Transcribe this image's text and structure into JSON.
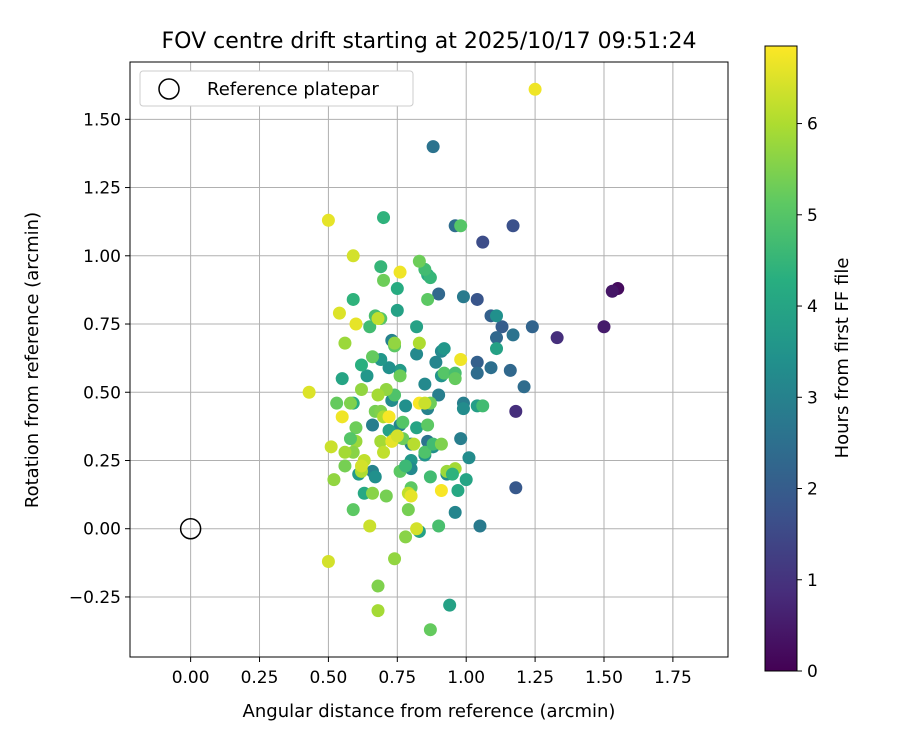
{
  "chart_data": {
    "type": "scatter",
    "title": "FOV centre drift starting at 2025/10/17 09:51:24",
    "xlabel": "Angular distance from reference (arcmin)",
    "ylabel": "Rotation from reference (arcmin)",
    "xlim": [
      -0.22,
      1.95
    ],
    "ylim": [
      -0.47,
      1.71
    ],
    "xticks": [
      0.0,
      0.25,
      0.5,
      0.75,
      1.0,
      1.25,
      1.5,
      1.75
    ],
    "xtick_labels": [
      "0.00",
      "0.25",
      "0.50",
      "0.75",
      "1.00",
      "1.25",
      "1.50",
      "1.75"
    ],
    "yticks": [
      -0.25,
      0.0,
      0.25,
      0.5,
      0.75,
      1.0,
      1.25,
      1.5
    ],
    "ytick_labels": [
      "−0.25",
      "0.00",
      "0.25",
      "0.50",
      "0.75",
      "1.00",
      "1.25",
      "1.50"
    ],
    "grid": true,
    "legend": {
      "position": "top-left",
      "entries": [
        "Reference platepar"
      ]
    },
    "reference_point": {
      "x": 0.0,
      "y": 0.0,
      "label": "Reference platepar"
    },
    "colorbar": {
      "label": "Hours from first FF file",
      "colormap": "viridis",
      "min": 0,
      "max": 6.85,
      "ticks": [
        0,
        1,
        2,
        3,
        4,
        5,
        6
      ],
      "tick_labels": [
        "0",
        "1",
        "2",
        "3",
        "4",
        "5",
        "6"
      ]
    },
    "points": [
      {
        "x": 1.55,
        "y": 0.88,
        "c": 0.2
      },
      {
        "x": 1.53,
        "y": 0.87,
        "c": 0.4
      },
      {
        "x": 1.5,
        "y": 0.74,
        "c": 0.5
      },
      {
        "x": 1.33,
        "y": 0.7,
        "c": 0.9
      },
      {
        "x": 1.18,
        "y": 0.43,
        "c": 0.9
      },
      {
        "x": 1.18,
        "y": 0.15,
        "c": 1.9
      },
      {
        "x": 1.24,
        "y": 0.74,
        "c": 2.2
      },
      {
        "x": 1.21,
        "y": 0.52,
        "c": 2.4
      },
      {
        "x": 1.17,
        "y": 1.11,
        "c": 1.7
      },
      {
        "x": 1.06,
        "y": 1.05,
        "c": 1.6
      },
      {
        "x": 1.04,
        "y": 0.84,
        "c": 1.8
      },
      {
        "x": 1.09,
        "y": 0.78,
        "c": 2.1
      },
      {
        "x": 1.13,
        "y": 0.74,
        "c": 2.0
      },
      {
        "x": 1.11,
        "y": 0.7,
        "c": 2.3
      },
      {
        "x": 1.17,
        "y": 0.71,
        "c": 2.6
      },
      {
        "x": 1.16,
        "y": 0.58,
        "c": 2.3
      },
      {
        "x": 1.09,
        "y": 0.59,
        "c": 2.5
      },
      {
        "x": 1.04,
        "y": 0.61,
        "c": 2.1
      },
      {
        "x": 1.04,
        "y": 0.57,
        "c": 2.4
      },
      {
        "x": 0.96,
        "y": 1.11,
        "c": 2.4
      },
      {
        "x": 0.88,
        "y": 1.4,
        "c": 2.6
      },
      {
        "x": 0.9,
        "y": 0.86,
        "c": 2.3
      },
      {
        "x": 0.99,
        "y": 0.85,
        "c": 2.8
      },
      {
        "x": 1.11,
        "y": 0.78,
        "c": 3.4
      },
      {
        "x": 1.11,
        "y": 0.66,
        "c": 3.9
      },
      {
        "x": 0.99,
        "y": 0.46,
        "c": 2.9
      },
      {
        "x": 0.99,
        "y": 0.44,
        "c": 3.3
      },
      {
        "x": 1.04,
        "y": 0.45,
        "c": 3.8
      },
      {
        "x": 1.01,
        "y": 0.26,
        "c": 3.3
      },
      {
        "x": 0.98,
        "y": 0.33,
        "c": 2.9
      },
      {
        "x": 1.05,
        "y": 0.01,
        "c": 2.8
      },
      {
        "x": 0.96,
        "y": 0.06,
        "c": 3.1
      },
      {
        "x": 0.91,
        "y": 0.65,
        "c": 3.2
      },
      {
        "x": 0.92,
        "y": 0.66,
        "c": 3.6
      },
      {
        "x": 0.89,
        "y": 0.61,
        "c": 3.1
      },
      {
        "x": 0.91,
        "y": 0.56,
        "c": 3.5
      },
      {
        "x": 0.9,
        "y": 0.49,
        "c": 2.9
      },
      {
        "x": 0.85,
        "y": 0.53,
        "c": 3.2
      },
      {
        "x": 0.86,
        "y": 0.44,
        "c": 3.0
      },
      {
        "x": 0.86,
        "y": 0.32,
        "c": 2.6
      },
      {
        "x": 0.88,
        "y": 0.3,
        "c": 3.4
      },
      {
        "x": 0.85,
        "y": 0.27,
        "c": 3.5
      },
      {
        "x": 0.93,
        "y": 0.2,
        "c": 3.3
      },
      {
        "x": 0.97,
        "y": 0.14,
        "c": 4.1
      },
      {
        "x": 1.0,
        "y": 0.18,
        "c": 4.0
      },
      {
        "x": 0.94,
        "y": -0.28,
        "c": 3.9
      },
      {
        "x": 0.8,
        "y": 0.25,
        "c": 3.6
      },
      {
        "x": 0.8,
        "y": 0.22,
        "c": 3.2
      },
      {
        "x": 0.8,
        "y": 0.31,
        "c": 3.0
      },
      {
        "x": 0.76,
        "y": 0.38,
        "c": 3.1
      },
      {
        "x": 0.78,
        "y": 0.45,
        "c": 3.4
      },
      {
        "x": 0.73,
        "y": 0.47,
        "c": 3.3
      },
      {
        "x": 0.73,
        "y": 0.69,
        "c": 3.0
      },
      {
        "x": 0.76,
        "y": 0.58,
        "c": 3.7
      },
      {
        "x": 0.82,
        "y": 0.64,
        "c": 3.2
      },
      {
        "x": 0.82,
        "y": 0.74,
        "c": 3.9
      },
      {
        "x": 0.72,
        "y": 0.59,
        "c": 3.4
      },
      {
        "x": 0.69,
        "y": 0.62,
        "c": 3.6
      },
      {
        "x": 0.66,
        "y": 0.38,
        "c": 2.9
      },
      {
        "x": 0.66,
        "y": 0.21,
        "c": 3.0
      },
      {
        "x": 0.67,
        "y": 0.19,
        "c": 3.4
      },
      {
        "x": 0.72,
        "y": 0.36,
        "c": 3.9
      },
      {
        "x": 0.82,
        "y": 0.37,
        "c": 4.0
      },
      {
        "x": 0.83,
        "y": -0.01,
        "c": 3.9
      },
      {
        "x": 0.63,
        "y": 0.13,
        "c": 4.1
      },
      {
        "x": 0.61,
        "y": 0.2,
        "c": 3.7
      },
      {
        "x": 0.64,
        "y": 0.56,
        "c": 3.6
      },
      {
        "x": 0.62,
        "y": 0.6,
        "c": 4.3
      },
      {
        "x": 0.59,
        "y": 0.46,
        "c": 4.2
      },
      {
        "x": 0.55,
        "y": 0.55,
        "c": 4.0
      },
      {
        "x": 0.59,
        "y": 0.84,
        "c": 4.4
      },
      {
        "x": 0.69,
        "y": 0.96,
        "c": 4.5
      },
      {
        "x": 0.7,
        "y": 1.14,
        "c": 4.4
      },
      {
        "x": 0.75,
        "y": 0.88,
        "c": 4.2
      },
      {
        "x": 0.75,
        "y": 0.8,
        "c": 3.9
      },
      {
        "x": 0.86,
        "y": 0.93,
        "c": 4.2
      },
      {
        "x": 0.87,
        "y": 0.92,
        "c": 4.5
      },
      {
        "x": 0.85,
        "y": 0.95,
        "c": 4.7
      },
      {
        "x": 0.86,
        "y": 0.84,
        "c": 5.1
      },
      {
        "x": 0.83,
        "y": 0.98,
        "c": 5.3
      },
      {
        "x": 0.7,
        "y": 0.91,
        "c": 5.3
      },
      {
        "x": 0.65,
        "y": 0.74,
        "c": 4.7
      },
      {
        "x": 0.67,
        "y": 0.78,
        "c": 4.8
      },
      {
        "x": 0.69,
        "y": 0.77,
        "c": 5.0
      },
      {
        "x": 0.98,
        "y": 1.11,
        "c": 5.0
      },
      {
        "x": 0.92,
        "y": 0.57,
        "c": 5.0
      },
      {
        "x": 0.96,
        "y": 0.57,
        "c": 4.8
      },
      {
        "x": 0.96,
        "y": 0.55,
        "c": 5.2
      },
      {
        "x": 1.06,
        "y": 0.45,
        "c": 4.7
      },
      {
        "x": 0.87,
        "y": 0.46,
        "c": 5.3
      },
      {
        "x": 0.86,
        "y": 0.38,
        "c": 5.1
      },
      {
        "x": 0.85,
        "y": 0.28,
        "c": 4.9
      },
      {
        "x": 0.88,
        "y": 0.31,
        "c": 4.7
      },
      {
        "x": 0.91,
        "y": 0.31,
        "c": 5.5
      },
      {
        "x": 0.87,
        "y": 0.19,
        "c": 4.7
      },
      {
        "x": 0.9,
        "y": 0.01,
        "c": 4.8
      },
      {
        "x": 0.93,
        "y": 0.21,
        "c": 5.8
      },
      {
        "x": 0.96,
        "y": 0.22,
        "c": 5.9
      },
      {
        "x": 0.95,
        "y": 0.2,
        "c": 4.4
      },
      {
        "x": 0.87,
        "y": -0.37,
        "c": 5.2
      },
      {
        "x": 0.77,
        "y": 0.39,
        "c": 5.0
      },
      {
        "x": 0.77,
        "y": 0.33,
        "c": 5.3
      },
      {
        "x": 0.76,
        "y": 0.21,
        "c": 5.1
      },
      {
        "x": 0.78,
        "y": 0.23,
        "c": 4.6
      },
      {
        "x": 0.8,
        "y": 0.15,
        "c": 5.1
      },
      {
        "x": 0.79,
        "y": 0.07,
        "c": 5.4
      },
      {
        "x": 0.78,
        "y": -0.03,
        "c": 5.6
      },
      {
        "x": 0.74,
        "y": 0.33,
        "c": 5.5
      },
      {
        "x": 0.74,
        "y": 0.67,
        "c": 5.1
      },
      {
        "x": 0.76,
        "y": 0.56,
        "c": 5.3
      },
      {
        "x": 0.74,
        "y": 0.49,
        "c": 4.9
      },
      {
        "x": 0.71,
        "y": 0.51,
        "c": 5.7
      },
      {
        "x": 0.68,
        "y": 0.49,
        "c": 5.9
      },
      {
        "x": 0.67,
        "y": 0.43,
        "c": 5.4
      },
      {
        "x": 0.69,
        "y": 0.43,
        "c": 5.5
      },
      {
        "x": 0.7,
        "y": 0.41,
        "c": 6.0
      },
      {
        "x": 0.69,
        "y": 0.32,
        "c": 5.9
      },
      {
        "x": 0.7,
        "y": 0.28,
        "c": 6.2
      },
      {
        "x": 0.66,
        "y": 0.13,
        "c": 5.6
      },
      {
        "x": 0.71,
        "y": 0.12,
        "c": 5.4
      },
      {
        "x": 0.74,
        "y": -0.11,
        "c": 5.7
      },
      {
        "x": 0.68,
        "y": -0.21,
        "c": 5.5
      },
      {
        "x": 0.68,
        "y": -0.3,
        "c": 5.9
      },
      {
        "x": 0.65,
        "y": 0.01,
        "c": 6.3
      },
      {
        "x": 0.6,
        "y": 0.37,
        "c": 5.3
      },
      {
        "x": 0.6,
        "y": 0.32,
        "c": 5.8
      },
      {
        "x": 0.59,
        "y": 0.28,
        "c": 5.6
      },
      {
        "x": 0.58,
        "y": 0.33,
        "c": 5.0
      },
      {
        "x": 0.56,
        "y": 0.23,
        "c": 5.4
      },
      {
        "x": 0.59,
        "y": 0.07,
        "c": 5.1
      },
      {
        "x": 0.52,
        "y": 0.18,
        "c": 5.7
      },
      {
        "x": 0.53,
        "y": 0.46,
        "c": 5.2
      },
      {
        "x": 0.58,
        "y": 0.46,
        "c": 5.5
      },
      {
        "x": 0.62,
        "y": 0.51,
        "c": 5.7
      },
      {
        "x": 0.56,
        "y": 0.68,
        "c": 5.8
      },
      {
        "x": 0.66,
        "y": 0.63,
        "c": 5.2
      },
      {
        "x": 0.74,
        "y": 0.68,
        "c": 5.7
      },
      {
        "x": 0.83,
        "y": 0.68,
        "c": 6.0
      },
      {
        "x": 0.56,
        "y": 0.28,
        "c": 5.9
      },
      {
        "x": 0.62,
        "y": 0.21,
        "c": 6.0
      },
      {
        "x": 0.63,
        "y": 0.25,
        "c": 6.2
      },
      {
        "x": 0.62,
        "y": 0.23,
        "c": 6.4
      },
      {
        "x": 0.55,
        "y": 0.41,
        "c": 6.7
      },
      {
        "x": 0.6,
        "y": 0.75,
        "c": 6.6
      },
      {
        "x": 0.54,
        "y": 0.79,
        "c": 6.5
      },
      {
        "x": 0.68,
        "y": 0.77,
        "c": 6.2
      },
      {
        "x": 0.59,
        "y": 1.0,
        "c": 6.4
      },
      {
        "x": 0.5,
        "y": 1.13,
        "c": 6.6
      },
      {
        "x": 0.76,
        "y": 0.94,
        "c": 6.7
      },
      {
        "x": 0.51,
        "y": 0.3,
        "c": 6.3
      },
      {
        "x": 0.43,
        "y": 0.5,
        "c": 6.5
      },
      {
        "x": 0.5,
        "y": -0.12,
        "c": 6.4
      },
      {
        "x": 0.72,
        "y": 0.41,
        "c": 6.8
      },
      {
        "x": 0.73,
        "y": 0.32,
        "c": 6.6
      },
      {
        "x": 0.75,
        "y": 0.34,
        "c": 6.4
      },
      {
        "x": 0.79,
        "y": 0.13,
        "c": 6.2
      },
      {
        "x": 0.8,
        "y": 0.12,
        "c": 6.6
      },
      {
        "x": 0.82,
        "y": 0.0,
        "c": 6.4
      },
      {
        "x": 0.81,
        "y": 0.31,
        "c": 6.1
      },
      {
        "x": 0.83,
        "y": 0.46,
        "c": 6.8
      },
      {
        "x": 0.85,
        "y": 0.46,
        "c": 6.3
      },
      {
        "x": 0.91,
        "y": 0.14,
        "c": 6.8
      },
      {
        "x": 0.98,
        "y": 0.62,
        "c": 6.7
      },
      {
        "x": 1.25,
        "y": 1.61,
        "c": 6.7
      }
    ]
  }
}
